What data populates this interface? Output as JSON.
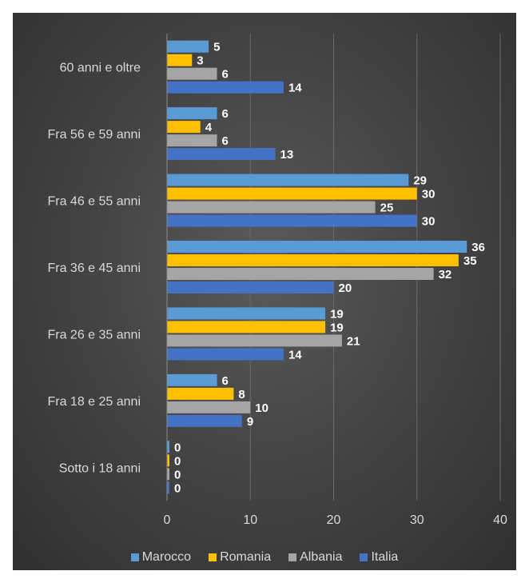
{
  "chart_data": {
    "type": "bar",
    "orientation": "horizontal",
    "categories": [
      "60 anni e oltre",
      "Fra 56 e 59 anni",
      "Fra 46 e 55 anni",
      "Fra 36 e 45 anni",
      "Fra 26 e 35 anni",
      "Fra 18 e 25 anni",
      "Sotto i 18 anni"
    ],
    "series": [
      {
        "name": "Marocco",
        "color": "#5b9bd5",
        "values": [
          5,
          6,
          29,
          36,
          19,
          6,
          0
        ]
      },
      {
        "name": "Romania",
        "color": "#ffc000",
        "values": [
          3,
          4,
          30,
          35,
          19,
          8,
          0
        ]
      },
      {
        "name": "Albania",
        "color": "#a5a5a5",
        "values": [
          6,
          6,
          25,
          32,
          21,
          10,
          0
        ]
      },
      {
        "name": "Italia",
        "color": "#4472c4",
        "values": [
          14,
          13,
          30,
          20,
          14,
          9,
          0
        ]
      }
    ],
    "xlim": [
      0,
      40
    ],
    "xticks": [
      0,
      10,
      20,
      30,
      40
    ],
    "title": "",
    "xlabel": "",
    "ylabel": "",
    "grid": "vertical",
    "legend_position": "bottom",
    "data_labels": true
  }
}
